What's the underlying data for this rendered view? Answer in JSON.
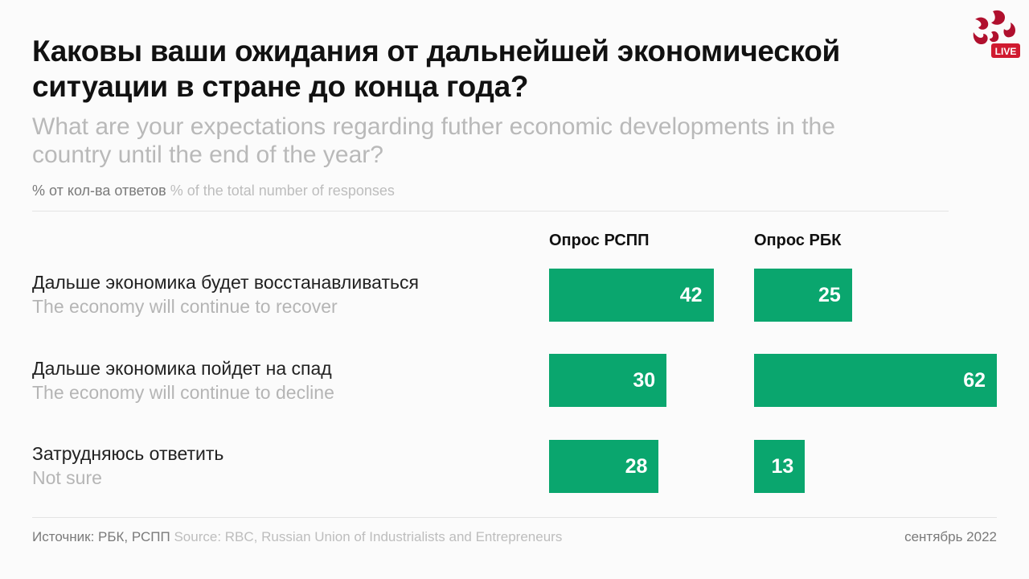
{
  "logo": {
    "text": "LIVE",
    "color": "#b0102e"
  },
  "chart_data": {
    "type": "bar",
    "title": "Каковы ваши ожидания от дальнейшей экономической ситуации в стране до конца года?",
    "subtitle": "What are your expectations regarding futher economic  developments in the country until the end of the year?",
    "units_ru": "% от кол-ва ответов",
    "units_en": "% of the total number of responses",
    "categories": [
      {
        "ru": "Дальше экономика будет восстанавливаться",
        "en": "The economy will continue to recover"
      },
      {
        "ru": "Дальше экономика пойдет на спад",
        "en": "The economy will continue to decline"
      },
      {
        "ru": "Затрудняюсь ответить",
        "en": "Not sure"
      }
    ],
    "series": [
      {
        "name": "Опрос РСПП",
        "values": [
          42,
          30,
          28
        ],
        "color": "#0aa66e"
      },
      {
        "name": "Опрос РБК",
        "values": [
          25,
          62,
          13
        ],
        "color": "#0aa66e"
      }
    ],
    "xlim": [
      0,
      62
    ]
  },
  "footer": {
    "source_ru": "Источник: РБК, РСПП",
    "source_en": "Source: RBC, Russian Union of Industrialists and Entrepreneurs",
    "date": "сентябрь 2022"
  }
}
